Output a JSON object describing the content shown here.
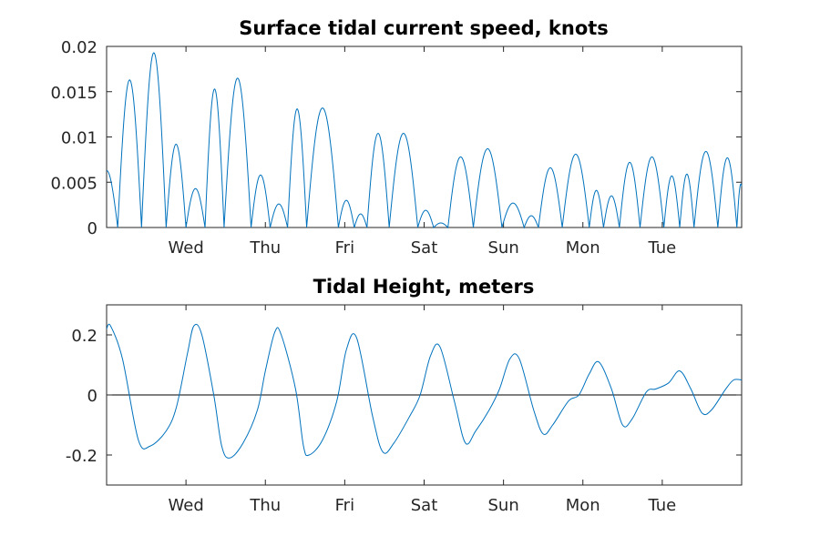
{
  "chart_data": [
    {
      "type": "line",
      "title": "Surface tidal current speed, knots",
      "xlabel": "",
      "ylabel": "",
      "x_tick_labels": [
        "Wed",
        "Thu",
        "Fri",
        "Sat",
        "Sun",
        "Mon",
        "Tue"
      ],
      "x_tick_days": [
        1,
        2,
        3,
        4,
        5,
        6,
        7
      ],
      "xlim_days": [
        0,
        8
      ],
      "ylim": [
        0,
        0.02
      ],
      "y_ticks": [
        0,
        0.005,
        0.01,
        0.015,
        0.02
      ],
      "y_tick_labels": [
        "0",
        "0.005",
        "0.01",
        "0.015",
        "0.02"
      ],
      "grid": false,
      "series_color": "#0072bd",
      "lobes": [
        [
          0.0,
          0.14,
          0.0063
        ],
        [
          0.14,
          0.44,
          0.0163
        ],
        [
          0.44,
          0.75,
          0.0193
        ],
        [
          0.75,
          1.0,
          0.0092
        ],
        [
          1.0,
          1.24,
          0.0043
        ],
        [
          1.24,
          1.48,
          0.0153
        ],
        [
          1.48,
          1.82,
          0.0165
        ],
        [
          1.82,
          2.06,
          0.0058
        ],
        [
          2.06,
          2.28,
          0.0026
        ],
        [
          2.28,
          2.52,
          0.0131
        ],
        [
          2.52,
          2.92,
          0.0132
        ],
        [
          2.92,
          3.12,
          0.003
        ],
        [
          3.12,
          3.28,
          0.0015
        ],
        [
          3.28,
          3.56,
          0.0104
        ],
        [
          3.56,
          3.92,
          0.0104
        ],
        [
          3.92,
          4.12,
          0.0019
        ],
        [
          4.12,
          4.3,
          0.0005
        ],
        [
          4.3,
          4.62,
          0.0078
        ],
        [
          4.62,
          4.98,
          0.0087
        ],
        [
          4.98,
          5.26,
          0.0027
        ],
        [
          5.26,
          5.44,
          0.0013
        ],
        [
          5.44,
          5.74,
          0.0066
        ],
        [
          5.74,
          6.08,
          0.0081
        ],
        [
          6.08,
          6.26,
          0.0041
        ],
        [
          6.26,
          6.46,
          0.0035
        ],
        [
          6.46,
          6.72,
          0.0072
        ],
        [
          6.72,
          7.02,
          0.0078
        ],
        [
          7.02,
          7.22,
          0.0057
        ],
        [
          7.22,
          7.4,
          0.0059
        ],
        [
          7.4,
          7.7,
          0.0084
        ],
        [
          7.7,
          7.94,
          0.0077
        ],
        [
          7.94,
          8.0,
          0.0048
        ]
      ]
    },
    {
      "type": "line",
      "title": "Tidal Height, meters",
      "xlabel": "",
      "ylabel": "",
      "x_tick_labels": [
        "Wed",
        "Thu",
        "Fri",
        "Sat",
        "Sun",
        "Mon",
        "Tue"
      ],
      "x_tick_days": [
        1,
        2,
        3,
        4,
        5,
        6,
        7
      ],
      "xlim_days": [
        0,
        8
      ],
      "ylim": [
        -0.3,
        0.3
      ],
      "y_ticks": [
        -0.2,
        0,
        0.2
      ],
      "y_tick_labels": [
        "-0.2",
        "0",
        "0.2"
      ],
      "zero_line": true,
      "grid": false,
      "series_color": "#0072bd",
      "points": [
        [
          0.0,
          0.22
        ],
        [
          0.05,
          0.23
        ],
        [
          0.2,
          0.12
        ],
        [
          0.4,
          -0.15
        ],
        [
          0.55,
          -0.17
        ],
        [
          0.75,
          -0.12
        ],
        [
          0.88,
          -0.04
        ],
        [
          1.02,
          0.14
        ],
        [
          1.1,
          0.23
        ],
        [
          1.2,
          0.2
        ],
        [
          1.35,
          0.0
        ],
        [
          1.45,
          -0.17
        ],
        [
          1.55,
          -0.21
        ],
        [
          1.72,
          -0.16
        ],
        [
          1.9,
          -0.05
        ],
        [
          2.0,
          0.08
        ],
        [
          2.12,
          0.21
        ],
        [
          2.2,
          0.2
        ],
        [
          2.38,
          0.02
        ],
        [
          2.48,
          -0.17
        ],
        [
          2.55,
          -0.2
        ],
        [
          2.72,
          -0.15
        ],
        [
          2.9,
          -0.02
        ],
        [
          3.02,
          0.15
        ],
        [
          3.15,
          0.19
        ],
        [
          3.35,
          -0.07
        ],
        [
          3.48,
          -0.19
        ],
        [
          3.62,
          -0.16
        ],
        [
          3.82,
          -0.07
        ],
        [
          3.95,
          0.0
        ],
        [
          4.08,
          0.13
        ],
        [
          4.2,
          0.16
        ],
        [
          4.38,
          -0.02
        ],
        [
          4.52,
          -0.16
        ],
        [
          4.65,
          -0.12
        ],
        [
          4.82,
          -0.05
        ],
        [
          4.95,
          0.02
        ],
        [
          5.08,
          0.12
        ],
        [
          5.2,
          0.12
        ],
        [
          5.38,
          -0.05
        ],
        [
          5.5,
          -0.13
        ],
        [
          5.62,
          -0.1
        ],
        [
          5.82,
          -0.02
        ],
        [
          5.95,
          0.0
        ],
        [
          6.08,
          0.07
        ],
        [
          6.2,
          0.11
        ],
        [
          6.36,
          0.02
        ],
        [
          6.5,
          -0.1
        ],
        [
          6.62,
          -0.08
        ],
        [
          6.8,
          0.01
        ],
        [
          6.92,
          0.02
        ],
        [
          7.08,
          0.04
        ],
        [
          7.22,
          0.08
        ],
        [
          7.36,
          0.02
        ],
        [
          7.5,
          -0.06
        ],
        [
          7.62,
          -0.05
        ],
        [
          7.8,
          0.02
        ],
        [
          7.9,
          0.05
        ],
        [
          8.0,
          0.05
        ]
      ]
    }
  ]
}
